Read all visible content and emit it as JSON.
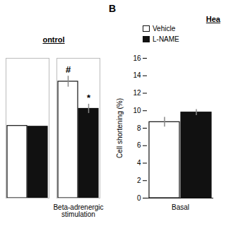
{
  "chart_data": [
    {
      "type": "bar",
      "title": "ontrol",
      "categories": [
        null,
        "Beta-adrenergic\nstimulation"
      ],
      "series": [
        {
          "name": "Vehicle",
          "color": "#ffffff",
          "values": [
            9.3,
            15.0
          ],
          "errors": [
            null,
            0.7
          ],
          "annotations": [
            null,
            "#"
          ]
        },
        {
          "name": "L-NAME",
          "color": "#111111",
          "values": [
            9.2,
            11.5
          ],
          "errors": [
            null,
            0.6
          ],
          "annotations": [
            null,
            "*"
          ]
        }
      ],
      "ylim": [
        0,
        18
      ],
      "tick_labels": "x"
    },
    {
      "type": "bar",
      "title": "B",
      "subtitle": "Hea",
      "categories": [
        "Basal"
      ],
      "series": [
        {
          "name": "Vehicle",
          "color": "#ffffff",
          "values": [
            8.7
          ],
          "errors": [
            0.55
          ]
        },
        {
          "name": "L-NAME",
          "color": "#111111",
          "values": [
            9.8
          ],
          "errors": [
            0.35
          ]
        }
      ],
      "ylabel": "Cell shortening (%)",
      "ylim": [
        0,
        16
      ],
      "yticks": [
        0,
        2,
        4,
        6,
        8,
        10,
        12,
        14,
        16
      ],
      "legend": "upper left"
    }
  ]
}
